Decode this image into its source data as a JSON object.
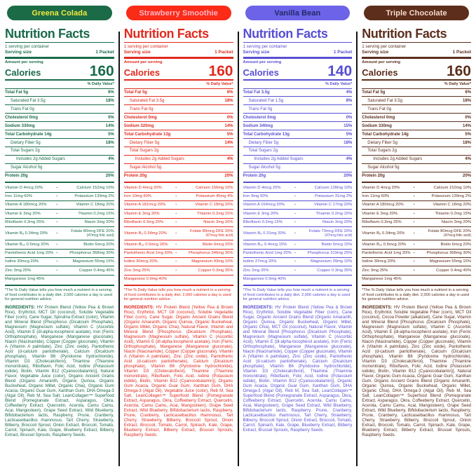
{
  "shared": {
    "title": "Nutrition Facts",
    "servings_per_container": "1 serving per container",
    "serving_size_label": "Serving size",
    "serving_size_value": "1 Packet",
    "amount_per_serving": "Amount per serving",
    "calories_label": "Calories",
    "daily_value_header": "% Daily Value*",
    "separator_dot": "•",
    "footnote": "*The % Daily Value tells you how much a nutrient in a serving of food contributes to a daily diet. 2,000 calories a day is used for general nutrition advice.",
    "ingredients_label": "INGREDIENTS:"
  },
  "columns": [
    {
      "name": "Greena Colada",
      "colors": {
        "theme": "#1a6b4a",
        "pill_bg": "#1b6b47",
        "pill_text": "#f5ea3d"
      },
      "calories": "160",
      "nutrients": [
        {
          "label": "Total Fat 5g",
          "dv": "6%",
          "bold": true
        },
        {
          "label": "Saturated Fat 3.5g",
          "dv": "18%",
          "indent": 1
        },
        {
          "label": "Trans Fat 0g",
          "dv": "",
          "indent": 1
        },
        {
          "label": "Cholesterol 0mg",
          "dv": "0%",
          "bold": true
        },
        {
          "label": "Sodium 330mg",
          "dv": "14%",
          "bold": true
        },
        {
          "label": "Total Carbohydrate 14g",
          "dv": "5%",
          "bold": true
        },
        {
          "label": "Dietary Fiber 5g",
          "dv": "18%",
          "indent": 1
        },
        {
          "label": "Total Sugars 2g",
          "dv": "",
          "indent": 1
        },
        {
          "label": "Includes 2g Added Sugars",
          "dv": "4%",
          "indent": 2
        },
        {
          "label": "Sugar Alcohol 5g",
          "dv": "",
          "indent": 1
        },
        {
          "label": "Protein 20g",
          "dv": "20%",
          "bold": true
        }
      ],
      "vitamins": [
        {
          "left": "Vitamin D 4mcg 20%",
          "right": "Calcium 152mg 10%"
        },
        {
          "left": "Iron 11mg 60%",
          "right": "Potassium 139mg 2%"
        },
        {
          "left": "Vitamin A 180mcg 20%",
          "right": "Vitamin C 18mg 20%"
        },
        {
          "left": "Vitamin E 3mg 20%",
          "right": "Thiamin 0.2mg 15%"
        },
        {
          "left": "Riboflavin 0.3mg 25%",
          "right": "Niacin 3mg 20%"
        },
        {
          "left": "Vitamin B₆ 0.34mg 20%",
          "right": "Folate 80mcg DFE 20%",
          "right_sub": "(47mcg folic acid)"
        },
        {
          "left": "Vitamin B₁₂ 0.5mcg 20%",
          "right": "Biotin 6mcg 20%"
        },
        {
          "left": "Pantothenic Acid 1mg 20%",
          "right": "Phosphorus 368mg 30%"
        },
        {
          "left": "Iodine 30mcg 20%",
          "right": "Magnesium 55mg 15%"
        },
        {
          "left": "Zinc 3mg 25%",
          "right": "Copper 0.4mg 45%"
        },
        {
          "left": "Manganese 1mg 45%",
          "right": ""
        }
      ],
      "ingredients": "HV Protein Blend (Yellow Pea & Brown Rice), Erythritol, MCT Oil (coconut), Soluble Vegetable Fiber (corn), Cane Sugar, Spirulina Extract (color), Vitamin and Mineral Blend [Phosphorus (Dicalcium Phosphate), Magnesium (Magnesium sulfate), Vitamin C (Ascorbic Acid), Vitamin E (dl-alpha-tocopherol acetate), Iron (Ferric Orthophosphate), Manganese (Manganese gluconate), Niacin (Niacinamide), Copper (Copper gluconate), Vitamin A (Vitamin A palmitate), Zinc (Zinc oxide), Pantothenic Acid (d-calcium pantothenate), Calcium (Dicalcium phosphate), Vitamin B6 (Pyridoxine hydrochloride), Vitamin D3 (Cholecalciferol), Thiamine (Thiamine mononitrate), Riboflavin, Folic Acid, Iodine (Potassium iodide), Biotin, Vitamin B12 (Cyanocobalamin)], Natural Flavor, Vegetable Juice (color), Organic Ancient Grains Blend (Organic Amaranth, Organic Quinoa, Organic Buckwheat, Organic Millet, Organic Chia), Organic Gum Acacia, Organic Guar Gum, Xanthan Gum, DHA Omega-3 (Algal Oil), Reb M, Sea Salt, LeanCollagen™ Superfood Blend (Pomegranate Extract, Asparagus, Okra, Coffeeberry Extract, Quercetin, Acerola, Camu Camu, Acai, Mangosteen), Grape Seed Extract, Wild Blueberry, Bifidobacterium lactis, Raspberry, Prune, Cranberry, Lacticaseibacillus rhamnosus, Tart Cherry, Strawberry, Bilberry, Broccoli Sprout, Onion Extract, Broccoli, Tomato, Carrot, Spinach, Kale, Grape, Blueberry Extract, Bilberry Extract, Brussel Sprouts, Raspberry Seeds."
    },
    {
      "name": "Strawberry Smoothie",
      "colors": {
        "theme": "#e02a1f",
        "pill_bg": "#fa2b17",
        "pill_text": "#ffb5c6"
      },
      "calories": "160",
      "nutrients": [
        {
          "label": "Total Fat 5g",
          "dv": "6%",
          "bold": true
        },
        {
          "label": "Saturated Fat 3.5g",
          "dv": "18%",
          "indent": 1
        },
        {
          "label": "Trans Fat 0g",
          "dv": "",
          "indent": 1
        },
        {
          "label": "Cholesterol 0mg",
          "dv": "0%",
          "bold": true
        },
        {
          "label": "Sodium 320mg",
          "dv": "14%",
          "bold": true
        },
        {
          "label": "Total Carbohydrate 13g",
          "dv": "5%",
          "bold": true
        },
        {
          "label": "Dietary Fiber 5g",
          "dv": "14%",
          "indent": 1
        },
        {
          "label": "Total Sugars 2g",
          "dv": "",
          "indent": 1
        },
        {
          "label": "Includes 2g Added Sugars",
          "dv": "4%",
          "indent": 2
        },
        {
          "label": "Sugar Alcohol 5g",
          "dv": "",
          "indent": 1
        },
        {
          "label": "Protein 20g",
          "dv": "20%",
          "bold": true
        }
      ],
      "vitamins": [
        {
          "left": "Vitamin D 4mcg 20%",
          "right": "Calcium 156mg 10%"
        },
        {
          "left": "Iron 10mg 60%",
          "right": "Potassium 45mg 4%"
        },
        {
          "left": "Vitamin A 181mcg 20%",
          "right": "Vitamin C 18mg 20%"
        },
        {
          "left": "Vitamin E 3mg 20%",
          "right": "Thiamin 0.2mg 15%"
        },
        {
          "left": "Riboflavin 0.3mg 25%",
          "right": "Niacin 3mg 20%"
        },
        {
          "left": "Vitamin B₆ 0.34mg 20%",
          "right": "Folate 80mcg DFE 20%",
          "right_sub": "(47mcg folic acid)"
        },
        {
          "left": "Vitamin B₁₂ 0.5mcg 20%",
          "right": "Biotin 6mcg 20%"
        },
        {
          "left": "Pantothenic Acid 1mg 20%",
          "right": "Phosphorus 346mg 30%"
        },
        {
          "left": "Iodine 30mcg 20%",
          "right": "Magnesium 43mg 10%"
        },
        {
          "left": "Zinc 3mg 25%",
          "right": "Copper 0.3mg 35%"
        },
        {
          "left": "Manganese 0.9mg 40%",
          "right": ""
        }
      ],
      "ingredients": "HV Protein Blend (Yellow Pea & Brown Rice), Erythritol, MCT Oil (coconut), Soluble Vegetable Fiber (corn), Cane Sugar, Organic Ancient Grains Blend (Organic Amaranth, Organic Quinoa, Organic Buckwheat, Organic Millet, Organic Chia), Natural Flavor, Vitamin and Mineral Blend [Phosphorus (Dicalcium Phosphate), Magnesium (Magnesium sulfate), Vitamin C (Ascorbic Acid), Vitamin E (dl-alpha-tocopherol acetate), Iron (Ferric Orthophosphate), Manganese (Manganese gluconate), Niacin (Niacinamide), Copper (Copper gluconate), Vitamin A (Vitamin A palmitate), Zinc (Zinc oxide), Pantothenic Acid (d-calcium pantothenate), Calcium (Dicalcium phosphate), Vitamin B6 (Pyridoxine hydrochloride), Vitamin D3 (Cholecalciferol), Thiamine (Thiamine mononitrate), Riboflavin, Folic Acid, Iodine (Potassium iodide), Biotin, Vitamin B12 (Cyanocobalamin)], Organic Gum Acacia, Organic Guar Gum, Xanthan Gum, DHA Omega-3 (Algal Oil), Vegetable Juice (color), Reb M, Sea Salt, LeanCollagen™ Superfood Blend (Pomegranate Extract, Asparagus, Okra, Coffeeberry Extract, Quercetin, Acerola, Camu Camu, Acai, Mangosteen), Grape Seed Extract, Wild Blueberry, Bifidobacterium lactis, Raspberry, Prune, Cranberry, Lacticaseibacillus rhamnosus, Tart Cherry, Strawberry, Bilberry, Broccoli Sprout, Onion Extract, Broccoli, Tomato, Carrot, Spinach, Kale, Grape, Blueberry Extract, Bilberry Extract, Brussel Sprouts, Raspberry Seeds."
    },
    {
      "name": "Vanilla Bean",
      "colors": {
        "theme": "#584fd2",
        "pill_bg": "#6c63e8",
        "pill_text": "#232a68"
      },
      "calories": "140",
      "nutrients": [
        {
          "label": "Total Fat 3.5g",
          "dv": "4%",
          "bold": true
        },
        {
          "label": "Saturated Fat 1.5g",
          "dv": "8%",
          "indent": 1
        },
        {
          "label": "Trans Fat 0g",
          "dv": "",
          "indent": 1
        },
        {
          "label": "Cholesterol 0mg",
          "dv": "0%",
          "bold": true
        },
        {
          "label": "Sodium 340mg",
          "dv": "15%",
          "bold": true
        },
        {
          "label": "Total Carbohydrate 13g",
          "dv": "5%",
          "bold": true
        },
        {
          "label": "Dietary Fiber 5g",
          "dv": "18%",
          "indent": 1
        },
        {
          "label": "Total Sugars 2g",
          "dv": "",
          "indent": 1
        },
        {
          "label": "Includes 2g Added Sugars",
          "dv": "4%",
          "indent": 2
        },
        {
          "label": "Sugar Alcohol 5g",
          "dv": "",
          "indent": 1
        },
        {
          "label": "Protein 20g",
          "dv": "20%",
          "bold": true
        }
      ],
      "vitamins": [
        {
          "left": "Vitamin D 4mcg 20%",
          "right": "Calcium 128mg 10%"
        },
        {
          "left": "Iron 9mg 50%",
          "right": "Potassium 31mg 2%"
        },
        {
          "left": "Vitamin A 164mcg 20%",
          "right": "Vitamin C 17mg 20%"
        },
        {
          "left": "Vitamin E 3mg 20%",
          "right": "Thiamin 0.2mg 15%"
        },
        {
          "left": "Riboflavin 0.2mg 15%",
          "right": "Niacin 3mg 20%"
        },
        {
          "left": "Vitamin B₆ 0.31mg 20%",
          "right": "Folate 73mcg DFE 20%",
          "right_sub": "(47mcg folic acid)"
        },
        {
          "left": "Vitamin B₁₂ 0.4mcg 15%",
          "right": "Biotin 5mcg 15%"
        },
        {
          "left": "Pantothenic Acid 1mg 20%",
          "right": "Phosphorus 319mg 25%"
        },
        {
          "left": "Iodine 27mcg 20%",
          "right": "Magnesium 39mg 10%"
        },
        {
          "left": "Zinc 2mg 20%",
          "right": "Copper 0.3mg 35%"
        },
        {
          "left": "Manganese 0.9mg 40%",
          "right": ""
        }
      ],
      "ingredients": "HV Protein Blend (Yellow Pea & Brown Rice), Erythritol, Soluble Vegetable Fiber (corn), Cane Sugar, Organic Ancient Grains Blend (Organic Amaranth, Organic Quinoa, Organic Buckwheat, Organic Millet, Organic Chia), MCT Oil (coconut), Natural Flavor, Vitamin and Mineral Blend [Phosphorus (Dicalcium Phosphate), Magnesium (Magnesium sulfate), Vitamin C (Ascorbic Acid), Vitamin E (dl-alpha-tocopherol acetate), Iron (Ferric Orthophosphate), Manganese (Manganese gluconate), Niacin (Niacinamide), Copper (Copper gluconate), Vitamin A (Vitamin A palmitate), Zinc (Zinc oxide), Pantothenic Acid (d-calcium pantothenate), Calcium (Dicalcium phosphate), Vitamin B6 (Pyridoxine hydrochloride), Vitamin D3 (Cholecalciferol), Thiamine (Thiamine mononitrate), Riboflavin, Folic Acid, Iodine (Potassium iodide), Biotin, Vitamin B12 (Cyanocobalamin)], Organic Gum Acacia, Organic Guar Gum, Xanthan Gum, DHA Omega-3 (Algal Oil), Reb M, Sea Salt, LeanCollagen™ Superfood Blend (Pomegranate Extract, Asparagus, Okra, Coffeeberry Extract, Quercetin, Acerola, Camu Camu, Acai, Mangosteen), Grape Seed Extract, Wild Blueberry, Bifidobacterium lactis, Raspberry, Prune, Cranberry, Lacticaseibacillus rhamnosus, Tart Cherry, Strawberry, Bilberry, Broccoli Sprout, Onion Extract, Broccoli, Tomato, Carrot, Spinach, Kale, Grape, Blueberry Extract, Bilberry Extract, Brussel Sprouts, Raspberry Seeds."
    },
    {
      "name": "Triple Chocolate",
      "colors": {
        "theme": "#5c2e1d",
        "pill_bg": "#5c2e1b",
        "pill_text": "#f7dacd"
      },
      "calories": "160",
      "nutrients": [
        {
          "label": "Total Fat 5g",
          "dv": "6%",
          "bold": true
        },
        {
          "label": "Saturated Fat 3.5g",
          "dv": "18%",
          "indent": 1
        },
        {
          "label": "Trans Fat 0g",
          "dv": "",
          "indent": 1
        },
        {
          "label": "Cholesterol 0mg",
          "dv": "0%",
          "bold": true
        },
        {
          "label": "Sodium 330mg",
          "dv": "14%",
          "bold": true
        },
        {
          "label": "Total Carbohydrate 14g",
          "dv": "5%",
          "bold": true
        },
        {
          "label": "Dietary Fiber 5g",
          "dv": "18%",
          "indent": 1
        },
        {
          "label": "Total Sugars 2g",
          "dv": "",
          "indent": 1
        },
        {
          "label": "Includes 2g Added Sugars",
          "dv": "4%",
          "indent": 2
        },
        {
          "label": "Sugar Alcohol 5g",
          "dv": "",
          "indent": 1
        },
        {
          "label": "Protein 20g",
          "dv": "20%",
          "bold": true
        }
      ],
      "vitamins": [
        {
          "left": "Vitamin D 4mcg 20%",
          "right": "Calcium 152mg 10%"
        },
        {
          "left": "Iron 11mg 60%",
          "right": "Potassium 139mg 2%"
        },
        {
          "left": "Vitamin A 180mcg 20%",
          "right": "Vitamin C 18mg 20%"
        },
        {
          "left": "Vitamin E 3mg 20%",
          "right": "Thiamin 0.2mg 15%"
        },
        {
          "left": "Riboflavin 0.3mg 25%",
          "right": "Niacin 3mg 20%"
        },
        {
          "left": "Vitamin B₆ 0.34mg 20%",
          "right": "Folate 80mcg DFE 20%",
          "right_sub": "(47mcg folic acid)"
        },
        {
          "left": "Vitamin B₁₂ 0.5mcg 20%",
          "right": "Biotin 6mcg 20%"
        },
        {
          "left": "Pantothenic Acid 1mg 20%",
          "right": "Phosphorus 368mg 30%"
        },
        {
          "left": "Iodine 30mcg 20%",
          "right": "Magnesium 55mg 15%"
        },
        {
          "left": "Zinc 3mg 25%",
          "right": "Copper 0.4mg 45%"
        },
        {
          "left": "Manganese 1mg 45%",
          "right": ""
        }
      ],
      "ingredients": "HV Protein Blend (Yellow Pea & Brown Rice), Erythritol, Soluble Vegetable Fiber (corn), MCT Oil (coconut), Cocoa Powder (alkalized), Cane Sugar, Vitamin and Mineral Blend [Phosphorus (Dicalcium Phosphate), Magnesium (Magnesium sulfate), Vitamin C (Ascorbic Acid), Vitamin E (dl-alpha-tocopherol acetate), Iron (Ferric Orthophosphate), Manganese (Manganese gluconate), Niacin (Niacinamide), Copper (Copper gluconate), Vitamin A (Vitamin A palmitate), Zinc (Zinc oxide), Pantothenic Acid (d-calcium pantothenate), Calcium (Dicalcium phosphate), Vitamin B6 (Pyridoxine hydrochloride), Vitamin D3 (Cholecalciferol), Thiamine (Thiamine mononitrate), Riboflavin, Folic Acid, Iodine (Potassium iodide), Biotin, Vitamin B12 (Cyanocobalamin)], Natural Flavor, Organic Gum Acacia, Organic Guar Gum, Xanthan Gum, Organic Ancient Grains Blend (Organic Amaranth, Organic Quinoa, Organic Buckwheat, Organic Millet, Organic Chia), DHA Omega-3 (Algal Oil), Reb M, Sea Salt, LeanCollagen™ Superfood Blend (Pomegranate Extract, Asparagus, Okra, Coffeeberry Extract, Quercetin, Acerola, Camu Camu, Acai, Mangosteen), Grape Seed Extract, Wild Blueberry, Bifidobacterium lactis, Raspberry, Prune, Cranberry, Lacticaseibacillus rhamnosus, Tart Cherry, Strawberry, Bilberry, Broccoli Sprout, Onion Extract, Broccoli, Tomato, Carrot, Spinach, Kale, Grape, Blueberry Extract, Bilberry Extract, Brussel Sprouts, Raspberry Seeds."
    }
  ]
}
